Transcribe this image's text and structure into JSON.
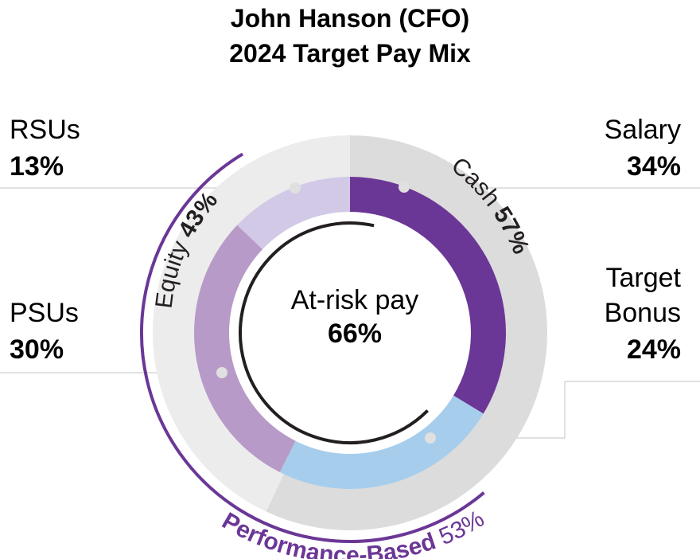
{
  "colors": {
    "salary": "#6b3796",
    "bonus": "#a6cdec",
    "psus": "#b89ac8",
    "rsus": "#d2c9e7",
    "cash_ring": "#dcdcdc",
    "equity_ring": "#ececec",
    "performance": "#6b3796",
    "text": "#231f20"
  },
  "chart_data": {
    "type": "pie",
    "title": "John Hanson (CFO)",
    "subtitle": "2024 Target Pay Mix",
    "slices": [
      {
        "label": "Salary",
        "value": 34,
        "value_label": "34%"
      },
      {
        "label": "Target Bonus",
        "value": 24,
        "value_label": "24%"
      },
      {
        "label": "PSUs",
        "value": 30,
        "value_label": "30%"
      },
      {
        "label": "RSUs",
        "value": 13,
        "value_label": "13%"
      }
    ],
    "groups": [
      {
        "name": "Cash",
        "value": 57,
        "value_label": "57%"
      },
      {
        "name": "Equity",
        "value": 43,
        "value_label": "43%"
      }
    ],
    "performance_based": {
      "label": "Performance-Based",
      "value": 53,
      "value_label": "53%"
    },
    "center": {
      "label": "At-risk pay",
      "value": 66,
      "value_label": "66%"
    }
  },
  "labels": {
    "salary": {
      "line1": "Salary",
      "pct": "34%"
    },
    "bonus": {
      "line1": "Target",
      "line2": "Bonus",
      "pct": "24%"
    },
    "psus": {
      "line1": "PSUs",
      "pct": "30%"
    },
    "rsus": {
      "line1": "RSUs",
      "pct": "13%"
    }
  }
}
